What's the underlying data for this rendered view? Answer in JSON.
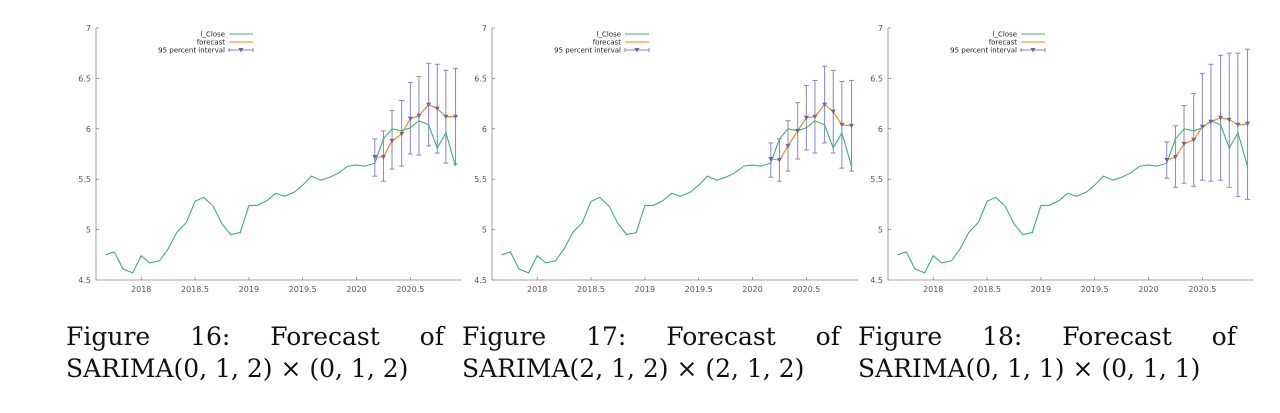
{
  "colors": {
    "actual": "#3cb371",
    "forecast": "#ff7f0e",
    "interval": "#8a84c8",
    "interval_marker": "#6a66a8",
    "axis": "#888888"
  },
  "chart_data": [
    {
      "type": "line",
      "figure_label": "Figure",
      "figure_number": "16:",
      "caption_words": [
        "Forecast",
        "of"
      ],
      "model": "SARIMA(0, 1, 2) × (0, 1, 2)",
      "xlim": [
        2017.58,
        2020.98
      ],
      "ylim": [
        4.5,
        7
      ],
      "x_ticks": [
        2018,
        2018.5,
        2019,
        2019.5,
        2020,
        2020.5
      ],
      "x_tick_labels": [
        "2018",
        "2018.5",
        "2019",
        "2019.5",
        "2020",
        "2020.5"
      ],
      "y_ticks": [
        4.5,
        5,
        5.5,
        6,
        6.5,
        7
      ],
      "y_tick_labels": [
        "4.5",
        "5",
        "5.5",
        "6",
        "6.5",
        "7"
      ],
      "legend": [
        "l_Close",
        "forecast",
        "95 percent interval"
      ],
      "legend_position": "top-left",
      "actual": {
        "x": [
          2017.67,
          2017.75,
          2017.83,
          2017.92,
          2018.0,
          2018.08,
          2018.17,
          2018.25,
          2018.33,
          2018.42,
          2018.5,
          2018.58,
          2018.67,
          2018.75,
          2018.83,
          2018.92,
          2019.0,
          2019.08,
          2019.17,
          2019.25,
          2019.33,
          2019.42,
          2019.5,
          2019.58,
          2019.67,
          2019.75,
          2019.83,
          2019.92,
          2020.0,
          2020.08,
          2020.17,
          2020.25,
          2020.33,
          2020.42,
          2020.5,
          2020.58,
          2020.67,
          2020.75,
          2020.83,
          2020.92
        ],
        "y": [
          4.75,
          4.78,
          4.61,
          4.57,
          4.74,
          4.67,
          4.69,
          4.81,
          4.97,
          5.07,
          5.28,
          5.32,
          5.23,
          5.06,
          4.95,
          4.97,
          5.24,
          5.24,
          5.29,
          5.36,
          5.33,
          5.37,
          5.44,
          5.53,
          5.49,
          5.52,
          5.56,
          5.63,
          5.64,
          5.63,
          5.66,
          5.9,
          6.0,
          5.98,
          6.01,
          6.08,
          6.04,
          5.81,
          5.96,
          5.63
        ]
      },
      "forecast": {
        "x": [
          2020.17,
          2020.25,
          2020.33,
          2020.42,
          2020.5,
          2020.58,
          2020.67,
          2020.75,
          2020.83,
          2020.92
        ],
        "y": [
          5.72,
          5.72,
          5.88,
          5.95,
          6.1,
          6.13,
          6.24,
          6.2,
          6.12,
          6.12
        ],
        "lower": [
          5.53,
          5.48,
          5.6,
          5.63,
          5.75,
          5.74,
          5.83,
          5.76,
          5.66,
          5.65
        ],
        "upper": [
          5.9,
          5.98,
          6.18,
          6.28,
          6.46,
          6.52,
          6.65,
          6.64,
          6.58,
          6.6
        ]
      }
    },
    {
      "type": "line",
      "figure_label": "Figure",
      "figure_number": "17:",
      "caption_words": [
        "Forecast",
        "of"
      ],
      "model": "SARIMA(2, 1, 2) × (2, 1, 2)",
      "xlim": [
        2017.58,
        2020.98
      ],
      "ylim": [
        4.5,
        7
      ],
      "x_ticks": [
        2018,
        2018.5,
        2019,
        2019.5,
        2020,
        2020.5
      ],
      "x_tick_labels": [
        "2018",
        "2018.5",
        "2019",
        "2019.5",
        "2020",
        "2020.5"
      ],
      "y_ticks": [
        4.5,
        5,
        5.5,
        6,
        6.5,
        7
      ],
      "y_tick_labels": [
        "4.5",
        "5",
        "5.5",
        "6",
        "6.5",
        "7"
      ],
      "legend": [
        "l_Close",
        "forecast",
        "95 percent interval"
      ],
      "legend_position": "top-left",
      "actual": {
        "x": [
          2017.67,
          2017.75,
          2017.83,
          2017.92,
          2018.0,
          2018.08,
          2018.17,
          2018.25,
          2018.33,
          2018.42,
          2018.5,
          2018.58,
          2018.67,
          2018.75,
          2018.83,
          2018.92,
          2019.0,
          2019.08,
          2019.17,
          2019.25,
          2019.33,
          2019.42,
          2019.5,
          2019.58,
          2019.67,
          2019.75,
          2019.83,
          2019.92,
          2020.0,
          2020.08,
          2020.17,
          2020.25,
          2020.33,
          2020.42,
          2020.5,
          2020.58,
          2020.67,
          2020.75,
          2020.83,
          2020.92
        ],
        "y": [
          4.75,
          4.78,
          4.61,
          4.57,
          4.74,
          4.67,
          4.69,
          4.81,
          4.97,
          5.07,
          5.28,
          5.32,
          5.23,
          5.06,
          4.95,
          4.97,
          5.24,
          5.24,
          5.29,
          5.36,
          5.33,
          5.37,
          5.44,
          5.53,
          5.49,
          5.52,
          5.56,
          5.63,
          5.64,
          5.63,
          5.66,
          5.9,
          6.0,
          5.98,
          6.01,
          6.08,
          6.04,
          5.81,
          5.96,
          5.63
        ]
      },
      "forecast": {
        "x": [
          2020.17,
          2020.25,
          2020.33,
          2020.42,
          2020.5,
          2020.58,
          2020.67,
          2020.75,
          2020.83,
          2020.92
        ],
        "y": [
          5.7,
          5.69,
          5.83,
          5.98,
          6.11,
          6.12,
          6.24,
          6.17,
          6.04,
          6.03
        ],
        "lower": [
          5.52,
          5.48,
          5.58,
          5.7,
          5.79,
          5.76,
          5.86,
          5.76,
          5.61,
          5.58
        ],
        "upper": [
          5.86,
          5.9,
          6.08,
          6.26,
          6.43,
          6.48,
          6.62,
          6.58,
          6.47,
          6.48
        ]
      }
    },
    {
      "type": "line",
      "figure_label": "Figure",
      "figure_number": "18:",
      "caption_words": [
        "Forecast",
        "of"
      ],
      "model": "SARIMA(0, 1, 1) × (0, 1, 1)",
      "xlim": [
        2017.58,
        2020.98
      ],
      "ylim": [
        4.5,
        7
      ],
      "x_ticks": [
        2018,
        2018.5,
        2019,
        2019.5,
        2020,
        2020.5
      ],
      "x_tick_labels": [
        "2018",
        "2018.5",
        "2019",
        "2019.5",
        "2020",
        "2020.5"
      ],
      "y_ticks": [
        4.5,
        5,
        5.5,
        6,
        6.5,
        7
      ],
      "y_tick_labels": [
        "4.5",
        "5",
        "5.5",
        "6",
        "6.5",
        "7"
      ],
      "legend": [
        "l_Close",
        "forecast",
        "95 percent interval"
      ],
      "legend_position": "top-left",
      "actual": {
        "x": [
          2017.67,
          2017.75,
          2017.83,
          2017.92,
          2018.0,
          2018.08,
          2018.17,
          2018.25,
          2018.33,
          2018.42,
          2018.5,
          2018.58,
          2018.67,
          2018.75,
          2018.83,
          2018.92,
          2019.0,
          2019.08,
          2019.17,
          2019.25,
          2019.33,
          2019.42,
          2019.5,
          2019.58,
          2019.67,
          2019.75,
          2019.83,
          2019.92,
          2020.0,
          2020.08,
          2020.17,
          2020.25,
          2020.33,
          2020.42,
          2020.5,
          2020.58,
          2020.67,
          2020.75,
          2020.83,
          2020.92
        ],
        "y": [
          4.75,
          4.78,
          4.61,
          4.57,
          4.74,
          4.67,
          4.69,
          4.81,
          4.97,
          5.07,
          5.28,
          5.32,
          5.23,
          5.06,
          4.95,
          4.97,
          5.24,
          5.24,
          5.29,
          5.36,
          5.33,
          5.37,
          5.44,
          5.53,
          5.49,
          5.52,
          5.56,
          5.63,
          5.64,
          5.63,
          5.66,
          5.9,
          6.0,
          5.98,
          6.01,
          6.08,
          6.04,
          5.81,
          5.96,
          5.63
        ]
      },
      "forecast": {
        "x": [
          2020.17,
          2020.25,
          2020.33,
          2020.42,
          2020.5,
          2020.58,
          2020.67,
          2020.75,
          2020.83,
          2020.92
        ],
        "y": [
          5.69,
          5.72,
          5.85,
          5.89,
          6.02,
          6.07,
          6.11,
          6.09,
          6.04,
          6.05
        ],
        "lower": [
          5.51,
          5.42,
          5.46,
          5.43,
          5.49,
          5.48,
          5.49,
          5.42,
          5.33,
          5.3
        ],
        "upper": [
          5.87,
          6.03,
          6.23,
          6.35,
          6.55,
          6.64,
          6.73,
          6.75,
          6.75,
          6.79
        ]
      }
    }
  ]
}
